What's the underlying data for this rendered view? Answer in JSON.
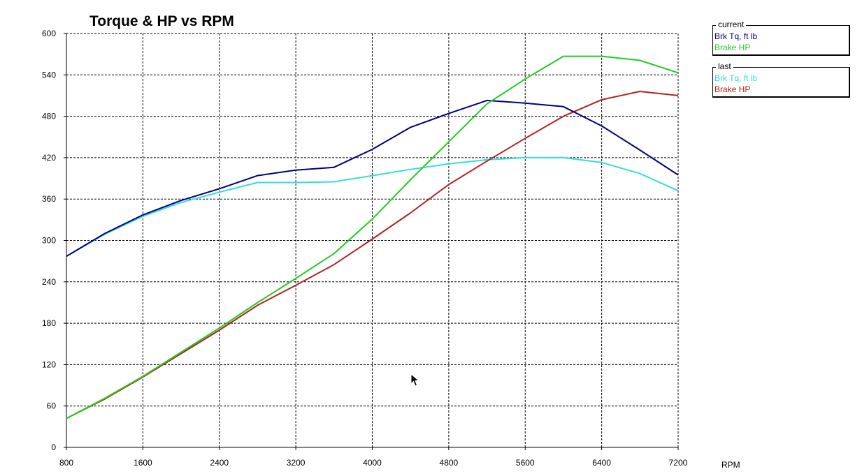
{
  "chart_data": {
    "type": "line",
    "title": "Torque & HP vs RPM",
    "xlabel": "RPM",
    "ylabel": "",
    "xlim": [
      800,
      7200
    ],
    "ylim": [
      0,
      600
    ],
    "x_ticks": [
      800,
      1600,
      2400,
      3200,
      4000,
      4800,
      5600,
      6400,
      7200
    ],
    "y_ticks": [
      0,
      60,
      120,
      180,
      240,
      300,
      360,
      420,
      480,
      540,
      600
    ],
    "x_grid_step": 800,
    "y_grid_step": 60,
    "grid": true,
    "grid_style": "dashed",
    "x": [
      800,
      1200,
      1600,
      2000,
      2400,
      2800,
      3200,
      3600,
      4000,
      4400,
      4800,
      5200,
      5600,
      6000,
      6400,
      6800,
      7200
    ],
    "series": [
      {
        "name": "Brk Tq, ft lb",
        "group": "current",
        "color": "#000080",
        "values": [
          277,
          310,
          337,
          358,
          375,
          394,
          402,
          406,
          432,
          464,
          484,
          503,
          499,
          494,
          466,
          431,
          395
        ]
      },
      {
        "name": "Brake HP",
        "group": "current",
        "color": "#22cc22",
        "values": [
          42,
          71,
          103,
          138,
          173,
          210,
          245,
          281,
          331,
          388,
          443,
          498,
          534,
          567,
          567,
          561,
          543
        ]
      },
      {
        "name": "Brk Tq, ft lb",
        "group": "last",
        "color": "#33dddd",
        "values": [
          277,
          309,
          335,
          355,
          370,
          384,
          384,
          385,
          394,
          403,
          411,
          417,
          420,
          420,
          413,
          397,
          372
        ]
      },
      {
        "name": "Brake HP",
        "group": "last",
        "color": "#b22222",
        "values": [
          42,
          70,
          102,
          136,
          170,
          206,
          235,
          265,
          302,
          340,
          381,
          415,
          448,
          480,
          504,
          516,
          510
        ]
      }
    ],
    "legend": [
      {
        "caption": "current",
        "entries": [
          {
            "label": "Brk Tq, ft lb",
            "color": "#000080"
          },
          {
            "label": "Brake HP",
            "color": "#22cc22"
          }
        ]
      },
      {
        "caption": "last",
        "entries": [
          {
            "label": "Brk Tq, ft lb",
            "color": "#33dddd"
          },
          {
            "label": "Brake HP",
            "color": "#b22222"
          }
        ]
      }
    ],
    "legend_position": "top-right"
  },
  "cursor_icon": "mouse-pointer-icon"
}
